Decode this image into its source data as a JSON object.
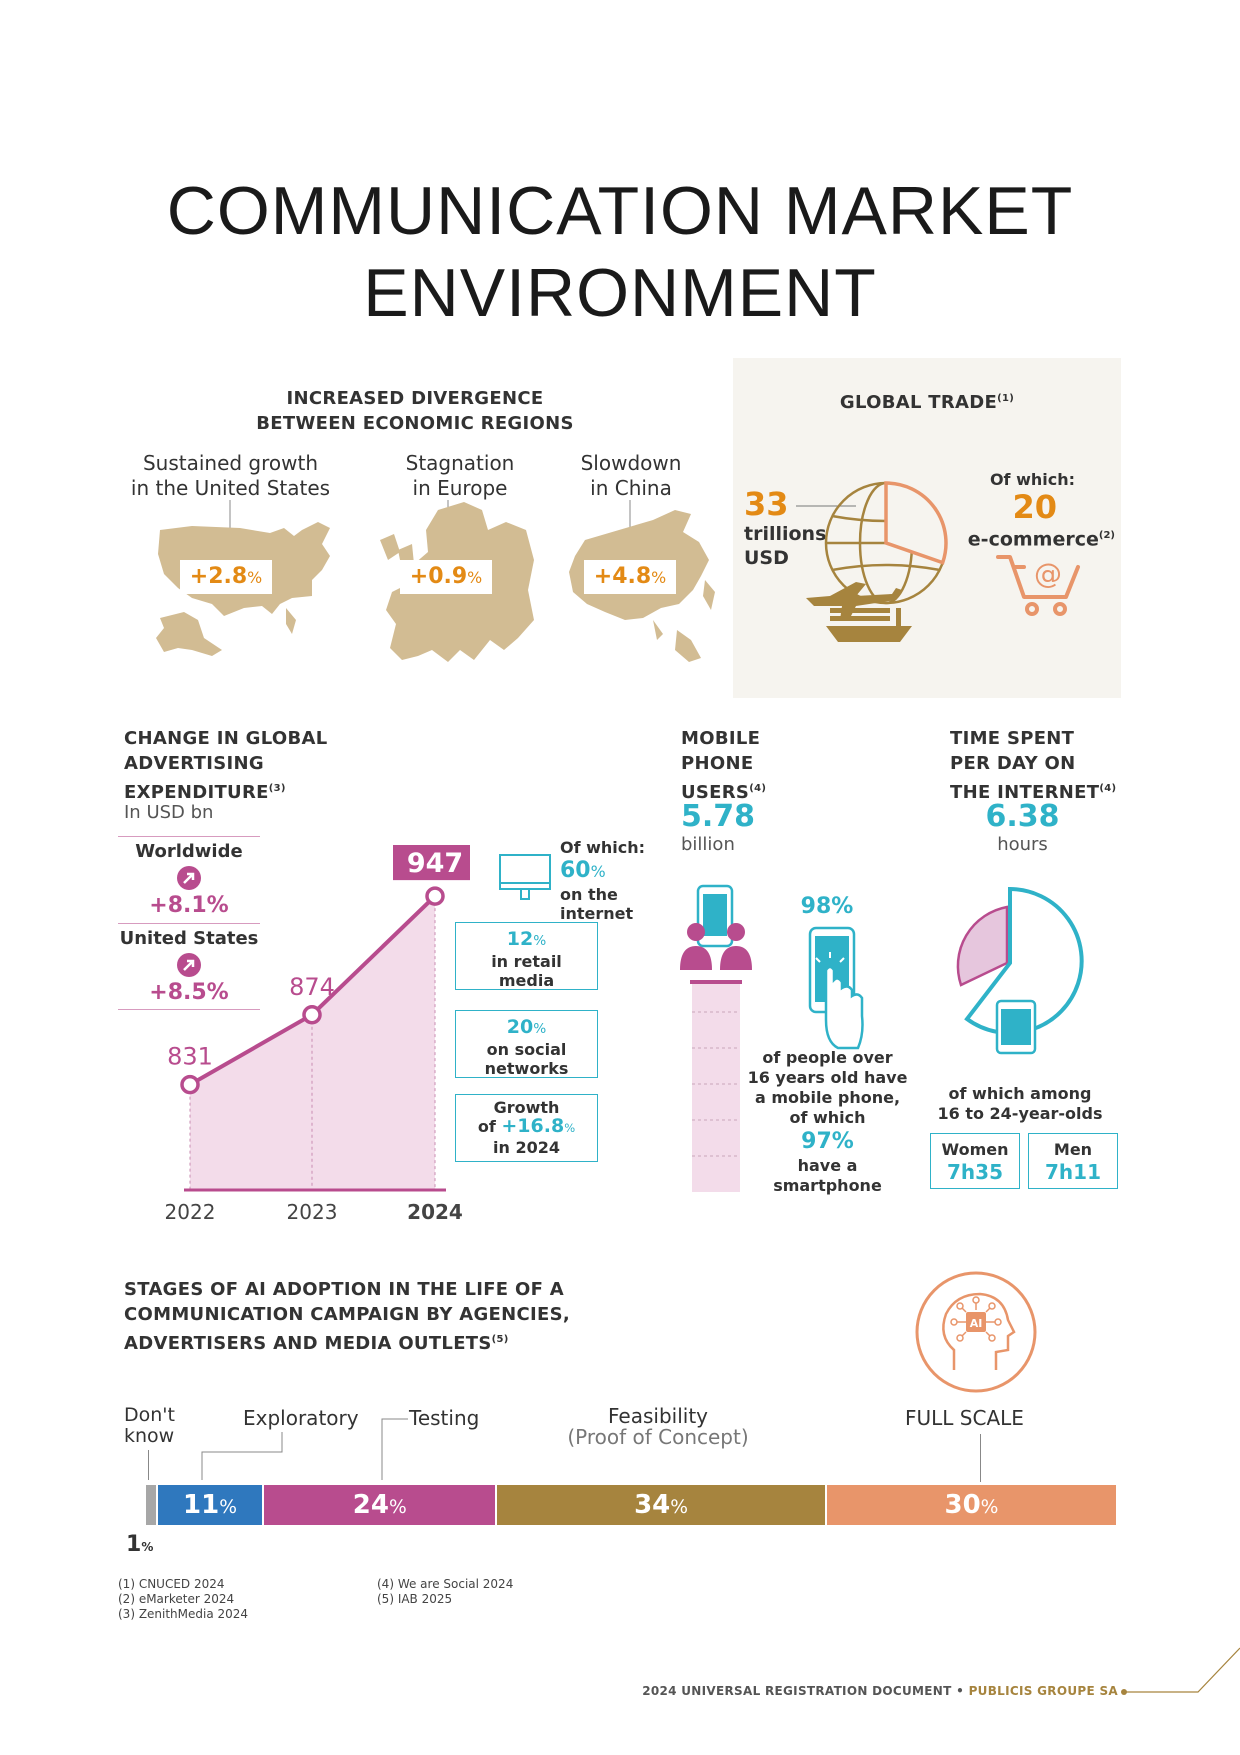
{
  "title_line1": "COMMUNICATION MARKET",
  "title_line2": "ENVIRONMENT",
  "divergence": {
    "heading_line1": "INCREASED DIVERGENCE",
    "heading_line2": "BETWEEN ECONOMIC REGIONS",
    "regions": [
      {
        "line1": "Sustained growth",
        "line2": "in the United States",
        "value": "+2.8",
        "unit": "%"
      },
      {
        "line1": "Stagnation",
        "line2": "in Europe",
        "value": "+0.9",
        "unit": "%"
      },
      {
        "line1": "Slowdown",
        "line2": "in China",
        "value": "+4.8",
        "unit": "%"
      }
    ]
  },
  "global_trade": {
    "heading": "GLOBAL TRADE",
    "heading_note": "(1)",
    "total_value": "33",
    "total_unit_line1": "trillions",
    "total_unit_line2": "USD",
    "of_which": "Of which:",
    "ecommerce_value": "20",
    "ecommerce_label": "e-commerce",
    "ecommerce_note": "(2)",
    "ecommerce_share": 0.606
  },
  "advertising": {
    "heading_line1": "CHANGE IN GLOBAL",
    "heading_line2": "ADVERTISING",
    "heading_line3": "EXPENDITURE",
    "heading_note": "(3)",
    "unit": "In USD bn",
    "worldwide_label": "Worldwide",
    "worldwide_value": "+8.1%",
    "us_label": "United States",
    "us_value": "+8.5%",
    "of_which": "Of which:",
    "internet_pct": "60",
    "internet_label_line1": "on the",
    "internet_label_line2": "internet",
    "box1_pct": "12",
    "box1_line1": "in retail",
    "box1_line2": "media",
    "box2_pct": "20",
    "box2_line1": "on social",
    "box2_line2": "networks",
    "box3_line1": "Growth",
    "box3_of": "of ",
    "box3_pct": "+16.8",
    "box3_line3": "in 2024",
    "pct_sign": "%"
  },
  "chart_data": {
    "type": "area",
    "x": [
      "2022",
      "2023",
      "2024"
    ],
    "values": [
      831,
      874,
      947
    ],
    "value_labels": [
      "831",
      "874",
      "947"
    ],
    "ylabel": "In USD bn"
  },
  "mobile": {
    "heading_line1": "MOBILE",
    "heading_line2": "PHONE",
    "heading_line3": "USERS",
    "heading_note": "(4)",
    "value": "5.78",
    "unit": "billion",
    "pct_mobile": "98%",
    "text_line1": "of people over",
    "text_line2": "16 years old have",
    "text_line3": "a mobile phone,",
    "text_line4": "of which",
    "pct_smartphone": "97%",
    "text_line5": "have a",
    "text_line6": "smartphone"
  },
  "time_spent": {
    "heading_line1": "TIME SPENT",
    "heading_line2": "PER DAY ON",
    "heading_line3": "THE INTERNET",
    "heading_note": "(4)",
    "value": "6.38",
    "unit": "hours",
    "among_line1": "of which among",
    "among_line2": "16 to 24-year-olds",
    "women_label": "Women",
    "women_value": "7h35",
    "men_label": "Men",
    "men_value": "7h11"
  },
  "ai": {
    "heading_line1": "STAGES OF AI ADOPTION IN THE LIFE OF A",
    "heading_line2": "COMMUNICATION CAMPAIGN BY AGENCIES,",
    "heading_line3": "ADVERTISERS AND MEDIA OUTLETS",
    "heading_note": "(5)",
    "icon_text": "AI",
    "stages": [
      {
        "label_line1": "Don't",
        "label_line2": "know",
        "value": "1",
        "pct": 1,
        "color": "#a7a7a7"
      },
      {
        "label_line1": "Exploratory",
        "value": "11",
        "pct": 11,
        "color": "#2f78be"
      },
      {
        "label_line1": "Testing",
        "value": "24",
        "pct": 24,
        "color": "#b84c8e"
      },
      {
        "label_line1": "Feasibility",
        "label_line2": "(Proof of Concept)",
        "value": "34",
        "pct": 34,
        "color": "#a6843e"
      },
      {
        "label_line1": "FULL SCALE",
        "value": "30",
        "pct": 30,
        "color": "#e8956a"
      }
    ],
    "pct_sign": "%"
  },
  "footnotes": {
    "n1": "(1) CNUCED 2024",
    "n2": "(2) eMarketer 2024",
    "n3": "(3) ZenithMedia 2024",
    "n4": "(4) We are Social 2024",
    "n5": "(5) IAB 2025"
  },
  "footer": {
    "left": "2024 UNIVERSAL REGISTRATION DOCUMENT",
    "sep": " • ",
    "right": "PUBLICIS GROUPE SA"
  },
  "colors": {
    "gold": "#d2bc93",
    "orange": "#e38a15",
    "cyan": "#2fb2c8",
    "magenta": "#b84c8e",
    "salmon": "#e8956a",
    "pink_fill": "#f3dcea"
  }
}
